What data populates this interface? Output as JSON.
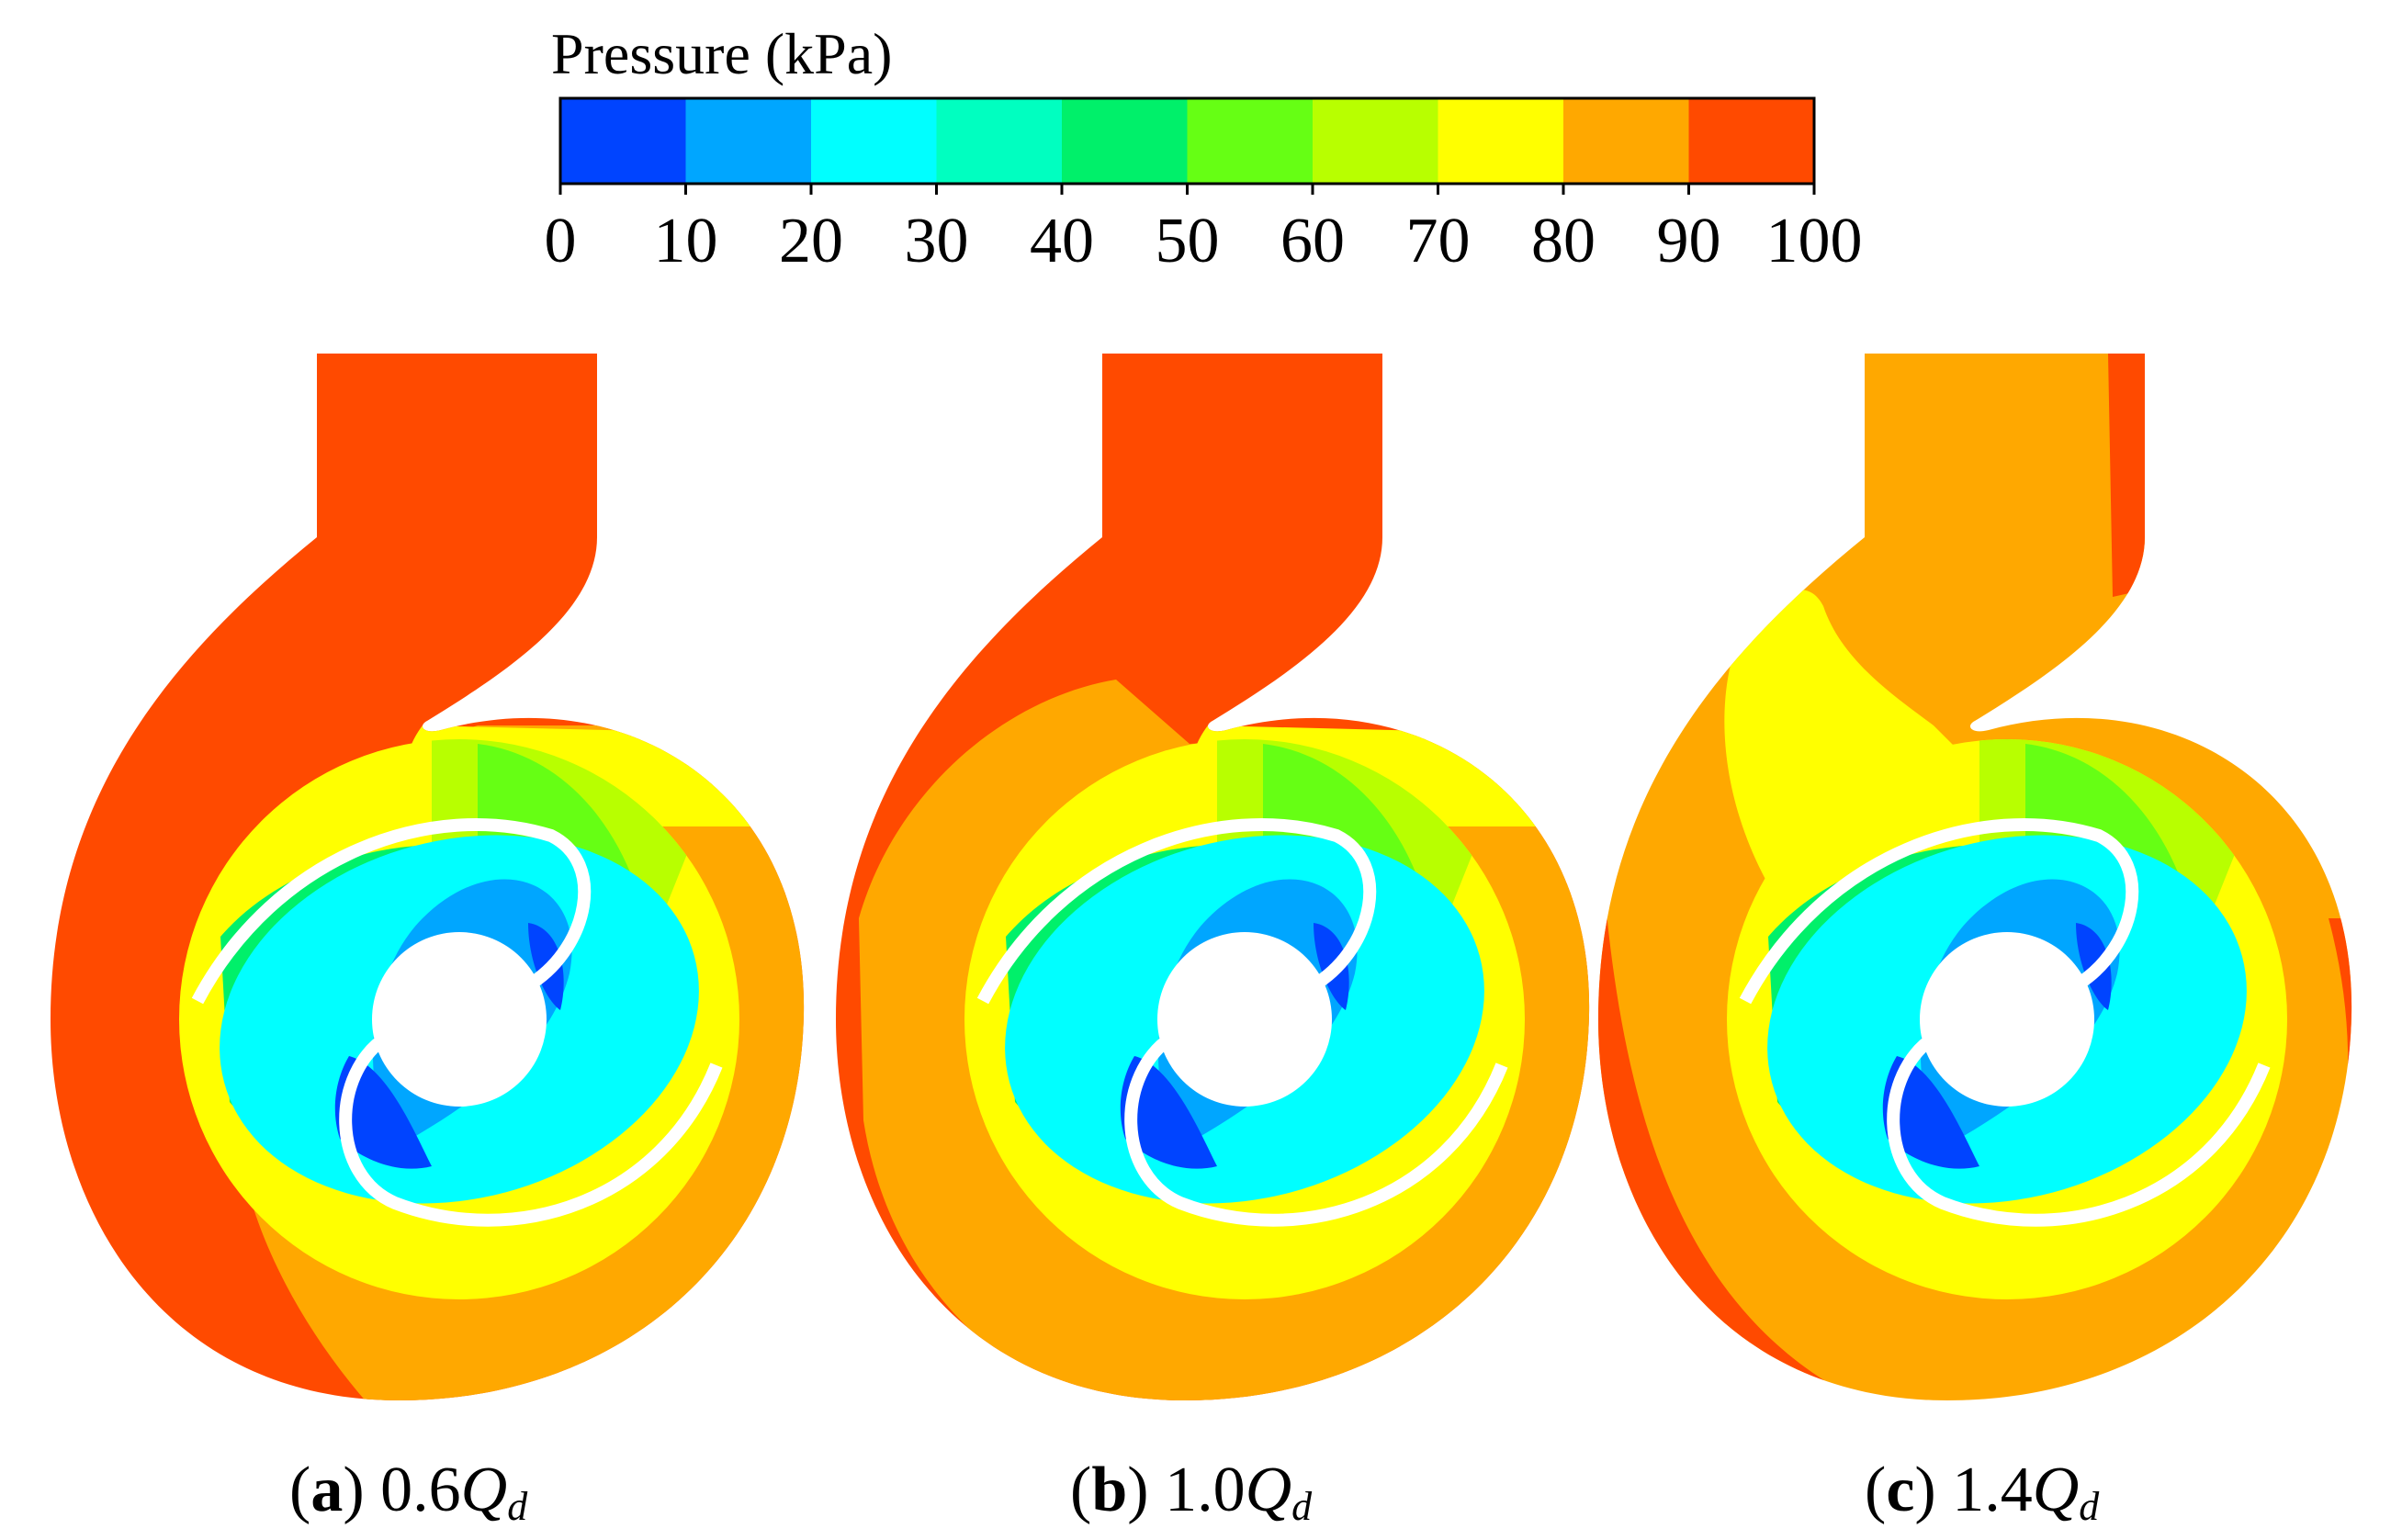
{
  "colorbar": {
    "title": "Pressure (kPa)",
    "ticks": [
      "0",
      "10",
      "20",
      "30",
      "40",
      "50",
      "60",
      "70",
      "80",
      "90",
      "100"
    ],
    "colors": [
      "#0044ff",
      "#00a6ff",
      "#00ffff",
      "#00ffc0",
      "#00f06a",
      "#66ff14",
      "#b8ff00",
      "#ffff00",
      "#ffa800",
      "#ff4a00"
    ]
  },
  "panels": [
    {
      "letter": "a",
      "factor": "0.6",
      "symbol": "Q",
      "subscript": "d"
    },
    {
      "letter": "b",
      "factor": "1.0",
      "symbol": "Q",
      "subscript": "d"
    },
    {
      "letter": "c",
      "factor": "1.4",
      "symbol": "Q",
      "subscript": "d"
    }
  ]
}
